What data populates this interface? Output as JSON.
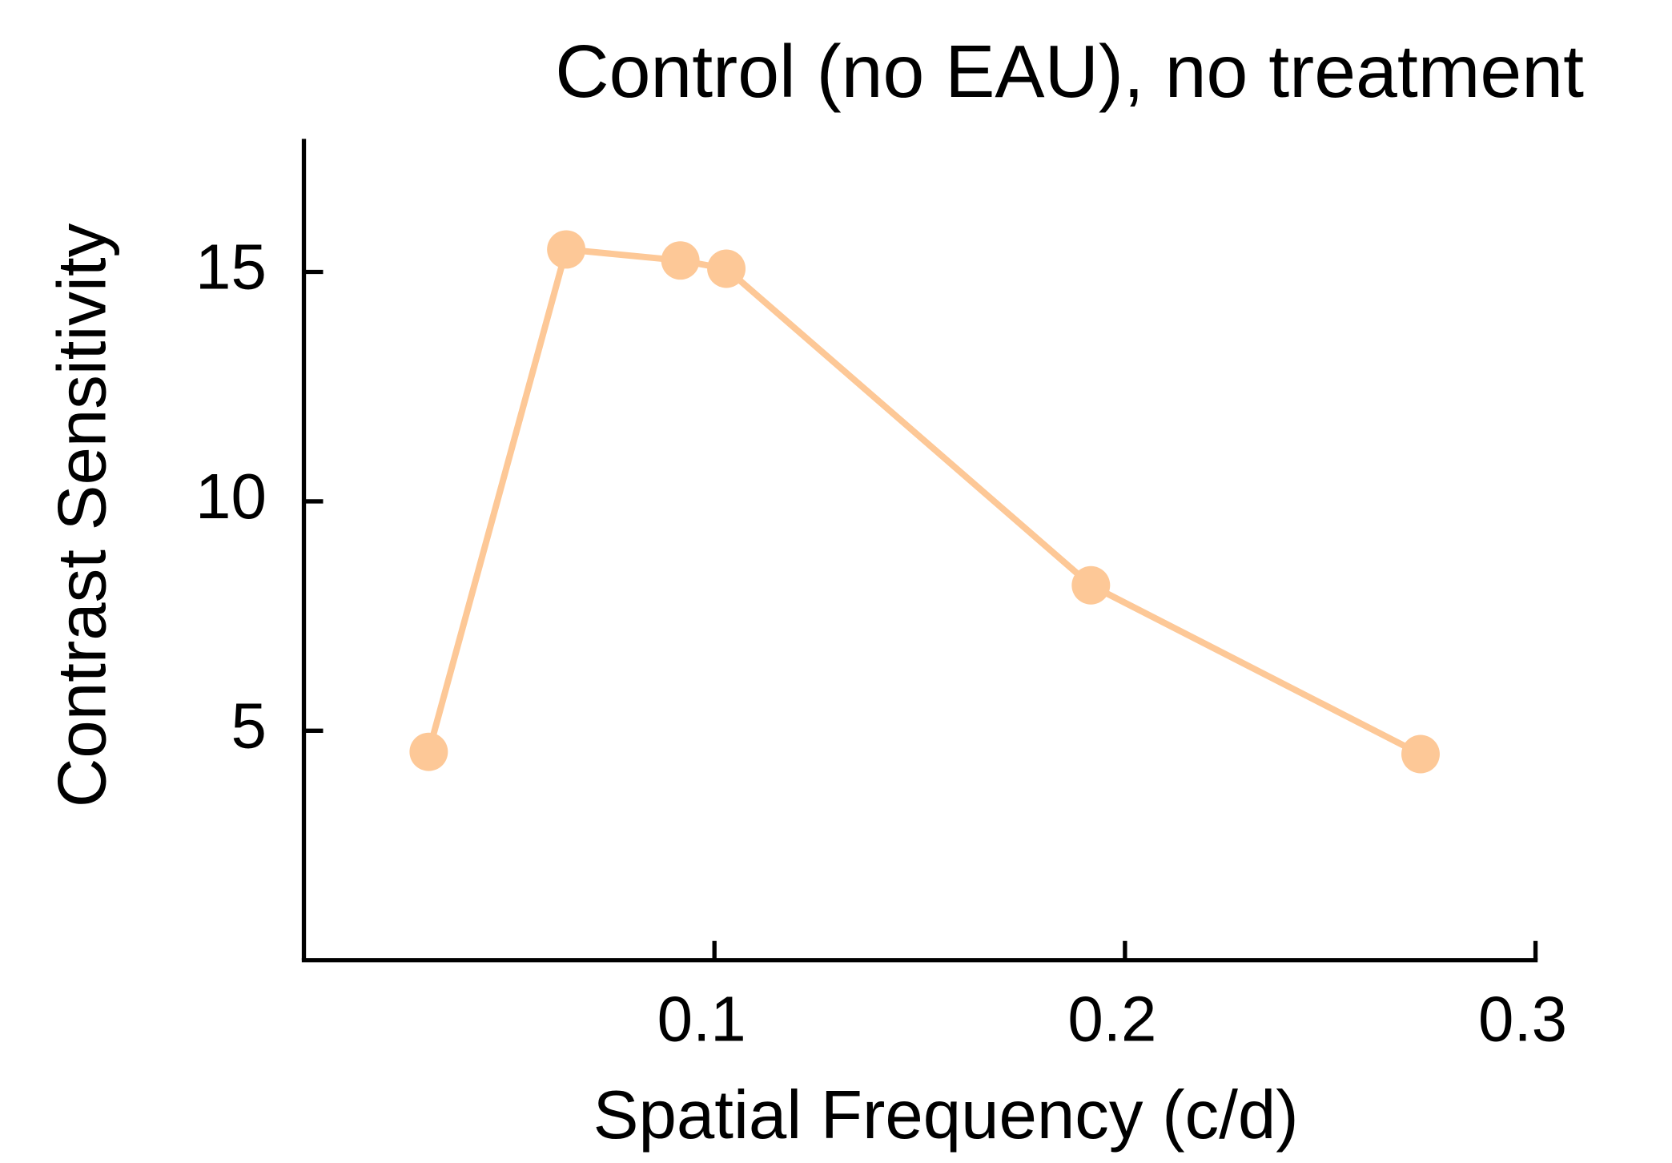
{
  "chart_data": {
    "type": "line",
    "title": "Control (no EAU), no treatment",
    "xlabel": "Spatial Frequency (c/d)",
    "ylabel": "Contrast Sensitivity",
    "x": [
      0.0304,
      0.0639,
      0.0917,
      0.1029,
      0.1917,
      0.272
    ],
    "series": [
      {
        "name": "Control",
        "color": "#fdc897",
        "values": [
          4.54,
          15.49,
          15.25,
          15.07,
          8.17,
          4.49
        ]
      }
    ],
    "xlim": [
      0,
      0.3
    ],
    "xticks": [
      0.1,
      0.2,
      0.3
    ],
    "ylim": [
      0,
      17.9
    ],
    "yticks": [
      5,
      10,
      15
    ]
  }
}
